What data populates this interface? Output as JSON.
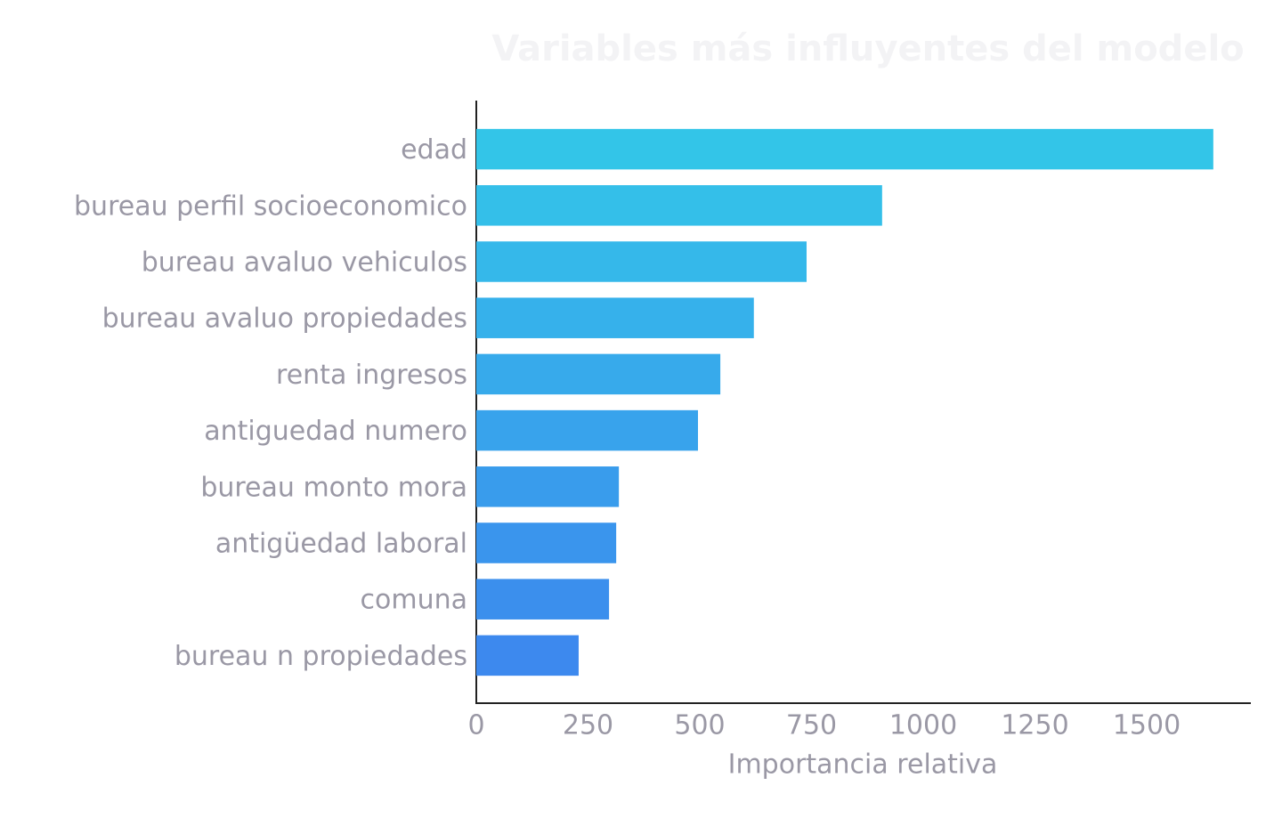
{
  "chart_data": {
    "type": "barh",
    "title": "Variables más influyentes del modelo",
    "xlabel": "Importancia relativa",
    "categories": [
      "edad",
      "bureau perfil socioeconomico",
      "bureau avaluo vehiculos",
      "bureau avaluo propiedades",
      "renta ingresos",
      "antiguedad numero",
      "bureau monto mora",
      "antigüedad laboral",
      "comuna",
      "bureau n propiedades"
    ],
    "values": [
      1649,
      908,
      739,
      621,
      546,
      496,
      319,
      313,
      297,
      229
    ],
    "colors": [
      "#33c5e8",
      "#34bfe9",
      "#35b8ea",
      "#36b1eb",
      "#37aaeb",
      "#38a3ec",
      "#399cec",
      "#3a95ed",
      "#3b8fed",
      "#3d89ee"
    ],
    "xlim": [
      0,
      1731
    ],
    "xticks": [
      0,
      250,
      500,
      750,
      1000,
      1250,
      1500
    ],
    "grid": false
  }
}
